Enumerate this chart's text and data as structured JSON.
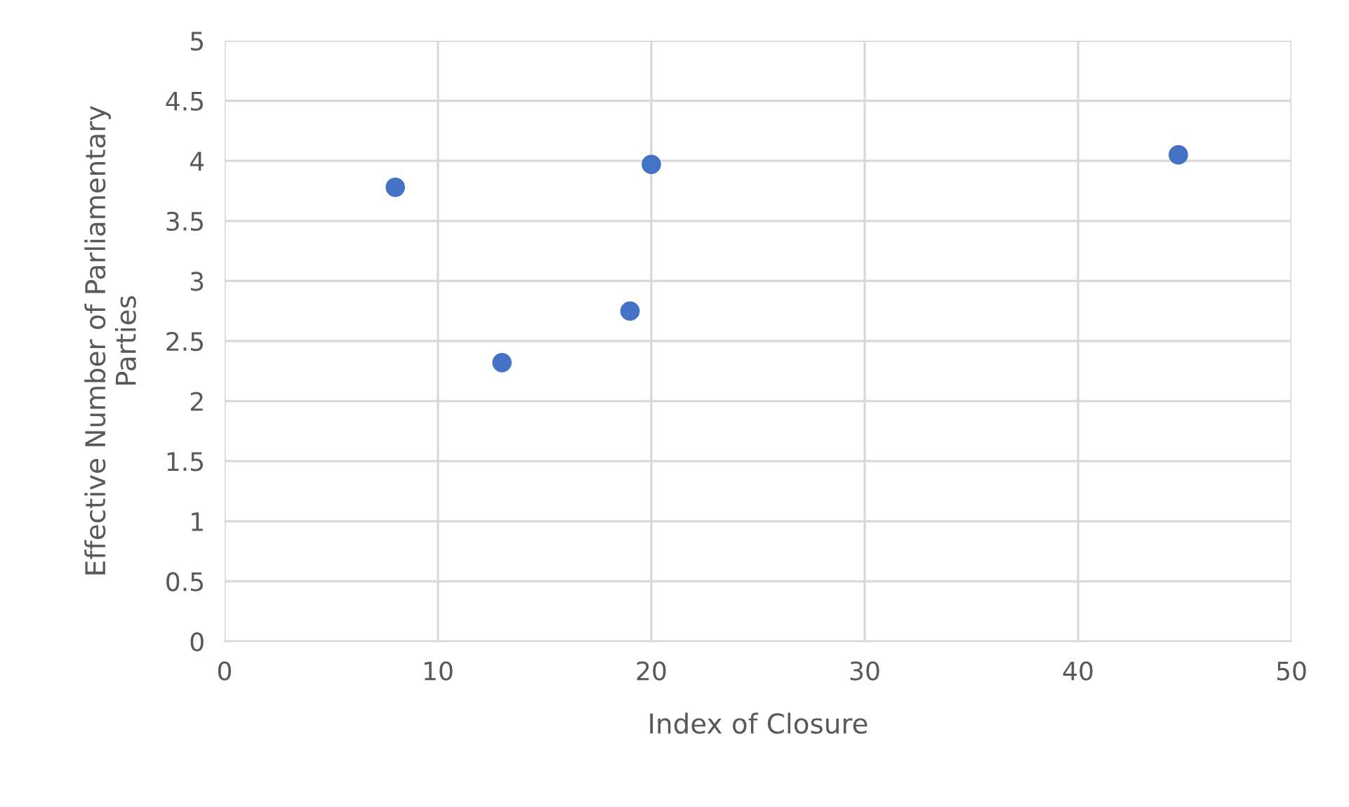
{
  "chart_data": {
    "type": "scatter",
    "xlabel": "Index of Closure",
    "ylabel": "Effective Number of Parliamentary\nParties",
    "x": [
      8,
      13,
      19,
      20,
      44.7
    ],
    "series": [
      {
        "color": "#4472c4",
        "values": [
          3.78,
          2.32,
          2.75,
          3.97,
          4.05
        ]
      }
    ],
    "xlim": [
      0,
      50
    ],
    "xticks": [
      0,
      10,
      20,
      30,
      40,
      50
    ],
    "ylim": [
      0,
      5
    ],
    "yticks": [
      0,
      {
        "value": 0.5,
        "label": "0.5"
      },
      1,
      {
        "value": 1.5,
        "label": "1.5"
      },
      2,
      {
        "value": 2.5,
        "label": "2.5"
      },
      3,
      {
        "value": 3.5,
        "label": "3.5"
      },
      4,
      {
        "value": 4.5,
        "label": "4.5"
      },
      5
    ],
    "grid": true,
    "marker": "circle"
  }
}
